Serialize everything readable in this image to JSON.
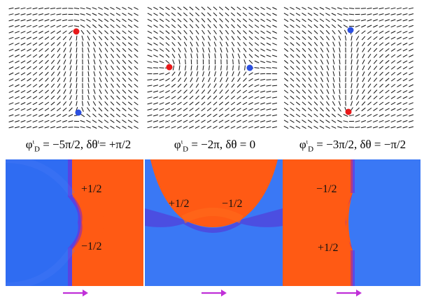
{
  "panels": [
    {
      "id": "left",
      "caption": {
        "phi": "φ",
        "phi_super": "ι",
        "phi_sub": "D",
        "phi_value": "= −5π/2,",
        "dtheta": "δθ",
        "dtheta_super": "ι",
        "dtheta_value": "= +π/2"
      },
      "defects": [
        {
          "label": "+1/2",
          "sign": "plus"
        },
        {
          "label": "−1/2",
          "sign": "minus"
        }
      ],
      "dot_colors": {
        "top": "#e8191a",
        "bottom": "#2b4fe0"
      }
    },
    {
      "id": "middle",
      "caption": {
        "phi": "φ",
        "phi_super": "ι",
        "phi_sub": "D",
        "phi_value": "= −2π,",
        "dtheta": "δθ",
        "dtheta_super": "",
        "dtheta_value": "= 0"
      },
      "defects": [
        {
          "label": "+1/2",
          "sign": "plus"
        },
        {
          "label": "−1/2",
          "sign": "minus"
        }
      ],
      "dot_colors": {
        "left": "#e8191a",
        "right": "#2b4fe0"
      }
    },
    {
      "id": "right",
      "caption": {
        "phi": "φ",
        "phi_super": "ι",
        "phi_sub": "D",
        "phi_value": "= −3π/2,",
        "dtheta": "δθ",
        "dtheta_super": "",
        "dtheta_value": "= −π/2"
      },
      "defects": [
        {
          "label": "−1/2",
          "sign": "minus"
        },
        {
          "label": "+1/2",
          "sign": "plus"
        }
      ],
      "dot_colors": {
        "top": "#2b4fe0",
        "bottom": "#e8191a"
      }
    }
  ],
  "colors": {
    "blue": "#2f6cf2",
    "orange": "#ff5a14",
    "purple": "#7a22d6",
    "arrow": "#c02fd8",
    "stroke": "#111111"
  }
}
